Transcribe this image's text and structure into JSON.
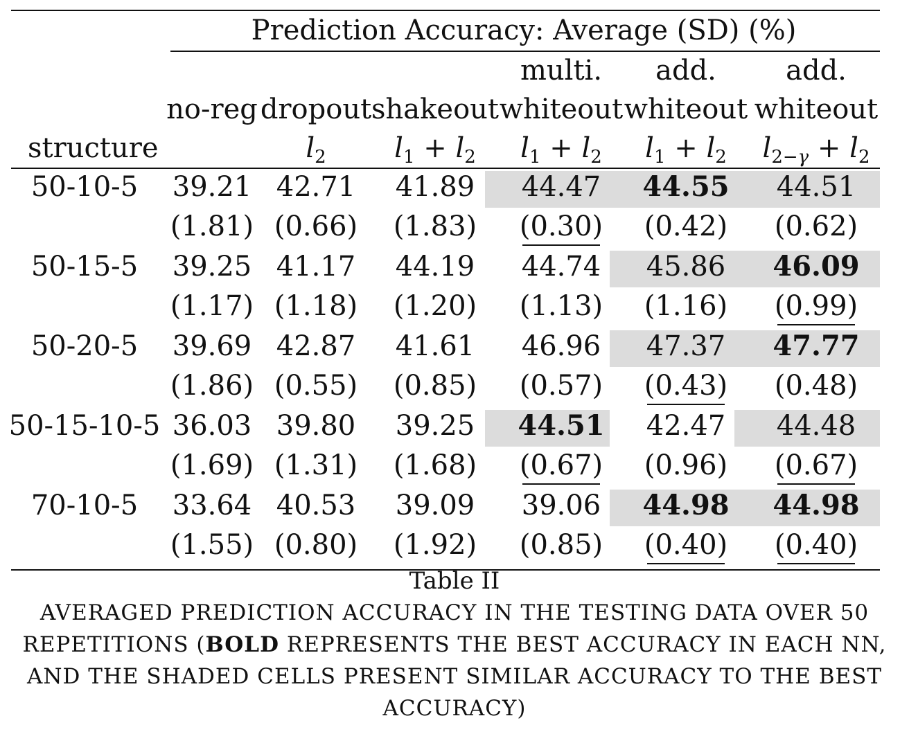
{
  "table": {
    "spanner": "Prediction Accuracy: Average (SD) (%)",
    "stub_header": "structure",
    "columns": [
      {
        "line1": "",
        "line2": "no-reg",
        "reg": ""
      },
      {
        "line1": "",
        "line2": "dropout",
        "reg": "l2"
      },
      {
        "line1": "",
        "line2": "shakeout",
        "reg": "l1 + l2"
      },
      {
        "line1": "multi.",
        "line2": "whiteout",
        "reg": "l1 + l2"
      },
      {
        "line1": "add.",
        "line2": "whiteout",
        "reg": "l1 + l2"
      },
      {
        "line1": "add.",
        "line2": "whiteout",
        "reg": "l2−γ + l2"
      }
    ],
    "rows": [
      {
        "structure": "50-10-5",
        "avg": [
          "39.21",
          "42.71",
          "41.89",
          "44.47",
          "44.55",
          "44.51"
        ],
        "sd": [
          "(1.81)",
          "(0.66)",
          "(1.83)",
          "(0.30)",
          "(0.42)",
          "(0.62)"
        ],
        "bold": [
          4
        ],
        "shaded": [
          3,
          4,
          5
        ],
        "sd_underlined": [
          3
        ]
      },
      {
        "structure": "50-15-5",
        "avg": [
          "39.25",
          "41.17",
          "44.19",
          "44.74",
          "45.86",
          "46.09"
        ],
        "sd": [
          "(1.17)",
          "(1.18)",
          "(1.20)",
          "(1.13)",
          "(1.16)",
          "(0.99)"
        ],
        "bold": [
          5
        ],
        "shaded": [
          4,
          5
        ],
        "sd_underlined": [
          5
        ]
      },
      {
        "structure": "50-20-5",
        "avg": [
          "39.69",
          "42.87",
          "41.61",
          "46.96",
          "47.37",
          "47.77"
        ],
        "sd": [
          "(1.86)",
          "(0.55)",
          "(0.85)",
          "(0.57)",
          "(0.43)",
          "(0.48)"
        ],
        "bold": [
          5
        ],
        "shaded": [
          4,
          5
        ],
        "sd_underlined": [
          4
        ]
      },
      {
        "structure": "50-15-10-5",
        "avg": [
          "36.03",
          "39.80",
          "39.25",
          "44.51",
          "42.47",
          "44.48"
        ],
        "sd": [
          "(1.69)",
          "(1.31)",
          "(1.68)",
          "(0.67)",
          "(0.96)",
          "(0.67)"
        ],
        "bold": [
          3
        ],
        "shaded": [
          3,
          5
        ],
        "sd_underlined": [
          3,
          5
        ]
      },
      {
        "structure": "70-10-5",
        "avg": [
          "33.64",
          "40.53",
          "39.09",
          "39.06",
          "44.98",
          "44.98"
        ],
        "sd": [
          "(1.55)",
          "(0.80)",
          "(1.92)",
          "(0.85)",
          "(0.40)",
          "(0.40)"
        ],
        "bold": [
          4,
          5
        ],
        "shaded": [
          4,
          5
        ],
        "sd_underlined": [
          4,
          5
        ]
      }
    ]
  },
  "caption": {
    "label": "Table II",
    "line1": "AVERAGED PREDICTION ACCURACY IN THE TESTING DATA OVER 50",
    "line2_pre": "REPETITIONS (",
    "line2_bold": "BOLD",
    "line2_post": " REPRESENTS THE BEST ACCURACY IN EACH NN,",
    "line3": "AND THE SHADED CELLS PRESENT SIMILAR ACCURACY TO THE BEST",
    "line4": "ACCURACY)"
  },
  "colors": {
    "shade": "#dcdcdc",
    "text": "#111111"
  }
}
